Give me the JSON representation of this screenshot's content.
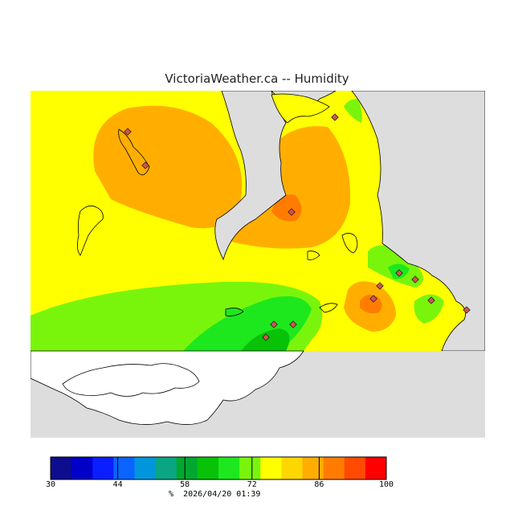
{
  "title": "VictoriaWeather.ca -- Humidity",
  "legend": {
    "colors": [
      "#0d0d8f",
      "#0000c8",
      "#0b1eff",
      "#0b64ff",
      "#0096db",
      "#0aa683",
      "#00a830",
      "#08c208",
      "#1de81d",
      "#79f50b",
      "#ffff00",
      "#ffd700",
      "#ffae00",
      "#ff7c00",
      "#ff4a00",
      "#ff0000"
    ],
    "ticks": [
      {
        "value": 30,
        "label": "30"
      },
      {
        "value": 44,
        "label": "44"
      },
      {
        "value": 58,
        "label": "58"
      },
      {
        "value": 72,
        "label": "72"
      },
      {
        "value": 86,
        "label": "86"
      },
      {
        "value": 100,
        "label": "100"
      }
    ],
    "min": 30,
    "max": 100
  },
  "footer": {
    "unit": "%",
    "timestamp": "2026/04/20 01:39"
  },
  "colors": {
    "land_gray": "#dddddd",
    "water_white": "#ffffff",
    "marker": "#cc5555"
  }
}
